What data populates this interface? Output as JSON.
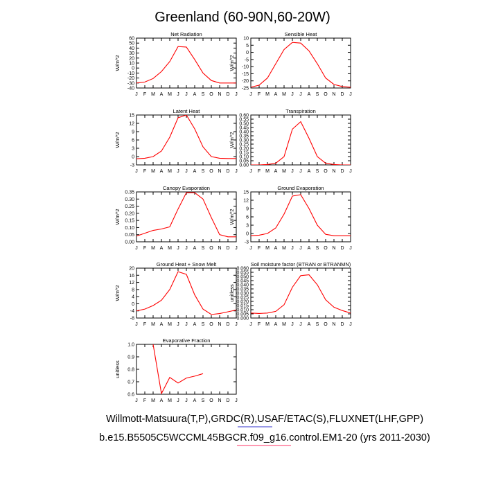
{
  "title": "Greenland (60-90N,60-20W)",
  "footer": {
    "line1": "Willmott-Matsuura(T,P),GRDC(R),USAF/ETAC(S),FLUXNET(LHF,GPP)",
    "line2": "b.e15.B5505C5WCCML45BGCR.f09_g16.control.EM1-20 (yrs 2011-2030)"
  },
  "colors": {
    "series": "#ff0000",
    "axis": "#000000",
    "underline1": "#3333cc",
    "underline2": "#ff3366"
  },
  "chart_data": [
    {
      "type": "line",
      "title": "Net Radiation",
      "ylabel": "W/m^2",
      "x": [
        "J",
        "F",
        "M",
        "A",
        "M",
        "J",
        "J",
        "A",
        "S",
        "O",
        "N",
        "D",
        "J"
      ],
      "ylim": [
        -40,
        60
      ],
      "yticks": [
        "60",
        "50",
        "40",
        "30",
        "20",
        "10",
        "0",
        "-10",
        "-20",
        "-30",
        "-40"
      ],
      "series": [
        {
          "name": "model",
          "values": [
            -30,
            -28,
            -21,
            -7,
            13,
            43,
            42,
            17,
            -10,
            -25,
            -30,
            -30,
            -30
          ]
        }
      ]
    },
    {
      "type": "line",
      "title": "Sensible Heat",
      "ylabel": "W/m^2",
      "x": [
        "J",
        "F",
        "M",
        "A",
        "M",
        "J",
        "J",
        "A",
        "S",
        "O",
        "N",
        "D",
        "J"
      ],
      "ylim": [
        -25,
        10
      ],
      "yticks": [
        "10",
        "5",
        "0",
        "-5",
        "-10",
        "-15",
        "-20",
        "-25"
      ],
      "series": [
        {
          "name": "model",
          "values": [
            -24.5,
            -23,
            -18,
            -8,
            2,
            7,
            6.5,
            1,
            -8,
            -18,
            -22.5,
            -24,
            -24.5
          ]
        }
      ]
    },
    {
      "type": "line",
      "title": "Latent Heat",
      "ylabel": "W/m^2",
      "x": [
        "J",
        "F",
        "M",
        "A",
        "M",
        "J",
        "J",
        "A",
        "S",
        "O",
        "N",
        "D",
        "J"
      ],
      "ylim": [
        -3,
        15
      ],
      "yticks": [
        "15",
        "12",
        "9",
        "6",
        "3",
        "0",
        "-3"
      ],
      "series": [
        {
          "name": "model",
          "values": [
            -0.8,
            -0.6,
            0,
            2,
            7,
            14,
            15,
            10,
            3.5,
            0,
            -0.6,
            -0.7,
            -0.7
          ]
        }
      ]
    },
    {
      "type": "line",
      "title": "Transpiration",
      "ylabel": "W/m^2",
      "x": [
        "J",
        "F",
        "M",
        "A",
        "M",
        "J",
        "J",
        "A",
        "S",
        "O",
        "N",
        "D",
        "J"
      ],
      "ylim": [
        0,
        0.6
      ],
      "yticks": [
        "0.60",
        "0.55",
        "0.50",
        "0.45",
        "0.40",
        "0.35",
        "0.30",
        "0.25",
        "0.20",
        "0.15",
        "0.10",
        "0.05",
        "0.00"
      ],
      "series": [
        {
          "name": "model",
          "values": [
            0,
            0,
            0.005,
            0.02,
            0.1,
            0.43,
            0.52,
            0.32,
            0.1,
            0.02,
            0.005,
            0,
            0
          ]
        }
      ]
    },
    {
      "type": "line",
      "title": "Canopy Evaporation",
      "ylabel": "W/m^2",
      "x": [
        "J",
        "F",
        "M",
        "A",
        "M",
        "J",
        "J",
        "A",
        "S",
        "O",
        "N",
        "D",
        "J"
      ],
      "ylim": [
        0,
        0.35
      ],
      "yticks": [
        "0.35",
        "0.30",
        "0.25",
        "0.20",
        "0.15",
        "0.10",
        "0.05",
        "0.00"
      ],
      "series": [
        {
          "name": "model",
          "values": [
            0.04,
            0.06,
            0.08,
            0.09,
            0.105,
            0.23,
            0.345,
            0.345,
            0.3,
            0.17,
            0.05,
            0.035,
            0.035
          ]
        }
      ]
    },
    {
      "type": "line",
      "title": "Ground Evaporation",
      "ylabel": "W/m^2",
      "x": [
        "J",
        "F",
        "M",
        "A",
        "M",
        "J",
        "J",
        "A",
        "S",
        "O",
        "N",
        "D",
        "J"
      ],
      "ylim": [
        -3,
        15
      ],
      "yticks": [
        "15",
        "12",
        "9",
        "6",
        "3",
        "0",
        "-3"
      ],
      "series": [
        {
          "name": "model",
          "values": [
            -0.8,
            -0.6,
            0,
            2,
            7,
            13.5,
            14,
            9,
            3,
            -0.3,
            -0.8,
            -0.8,
            -0.8
          ]
        }
      ]
    },
    {
      "type": "line",
      "title": "Ground Heat + Snow Melt",
      "ylabel": "W/m^2",
      "x": [
        "J",
        "F",
        "M",
        "A",
        "M",
        "J",
        "J",
        "A",
        "S",
        "O",
        "N",
        "D",
        "J"
      ],
      "ylim": [
        -8,
        20
      ],
      "yticks": [
        "20",
        "16",
        "12",
        "8",
        "4",
        "0",
        "-4",
        "-8"
      ],
      "series": [
        {
          "name": "model",
          "values": [
            -4,
            -3,
            -1,
            2,
            8,
            18,
            16.5,
            5,
            -3,
            -6,
            -5.5,
            -4.5,
            -3.5
          ]
        }
      ]
    },
    {
      "type": "line",
      "title": "Soil moisture factor (BTRAN or BTRANMN)",
      "ylabel": "unitless",
      "x": [
        "J",
        "F",
        "M",
        "A",
        "M",
        "J",
        "J",
        "A",
        "S",
        "O",
        "N",
        "D",
        "J"
      ],
      "ylim": [
        0,
        0.06
      ],
      "yticks": [
        "0.060",
        "0.055",
        "0.050",
        "0.045",
        "0.040",
        "0.035",
        "0.030",
        "0.025",
        "0.020",
        "0.015",
        "0.010",
        "0.005",
        "0.000"
      ],
      "series": [
        {
          "name": "model",
          "values": [
            0.006,
            0.0055,
            0.006,
            0.008,
            0.016,
            0.037,
            0.051,
            0.052,
            0.04,
            0.022,
            0.013,
            0.009,
            0.006
          ]
        }
      ]
    },
    {
      "type": "line",
      "title": "Evaporative Fraction",
      "ylabel": "unitless",
      "x": [
        "J",
        "F",
        "M",
        "A",
        "M",
        "J",
        "J",
        "A",
        "S",
        "O",
        "N",
        "D",
        "J"
      ],
      "ylim": [
        0.6,
        1.0
      ],
      "yticks": [
        "1.0",
        "0.9",
        "0.8",
        "0.7",
        "0.6"
      ],
      "series": [
        {
          "name": "model",
          "values": [
            null,
            null,
            1.0,
            0.605,
            0.735,
            0.69,
            0.73,
            0.745,
            0.765,
            null,
            null,
            null,
            null
          ]
        }
      ]
    }
  ]
}
